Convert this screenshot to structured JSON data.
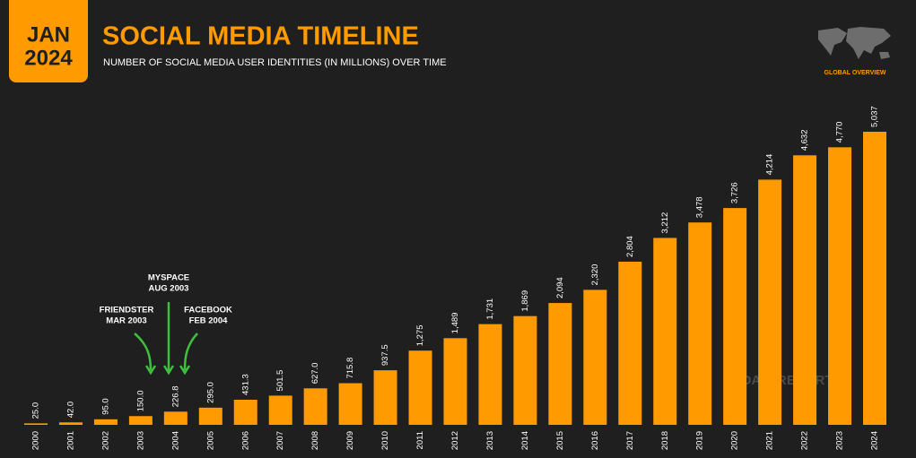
{
  "chart_data": {
    "type": "bar",
    "badge": [
      "JAN",
      "2024"
    ],
    "title": "SOCIAL MEDIA TIMELINE",
    "subtitle": "NUMBER OF SOCIAL MEDIA USER IDENTITIES (IN MILLIONS) OVER TIME",
    "section": "GLOBAL OVERVIEW",
    "watermark": "DATAREPORTAL",
    "categories": [
      "2000",
      "2001",
      "2002",
      "2003",
      "2004",
      "2005",
      "2006",
      "2007",
      "2008",
      "2009",
      "2010",
      "2011",
      "2012",
      "2013",
      "2014",
      "2015",
      "2016",
      "2017",
      "2018",
      "2019",
      "2020",
      "2021",
      "2022",
      "2023",
      "2024"
    ],
    "values": [
      25.0,
      42.0,
      95.0,
      150.0,
      226.8,
      295.0,
      431.3,
      501.5,
      627.0,
      715.8,
      937.5,
      1275,
      1489,
      1731,
      1869,
      2094,
      2320,
      2804,
      3212,
      3478,
      3726,
      4214,
      4632,
      4770,
      5037
    ],
    "value_labels": [
      "25.0",
      "42.0",
      "95.0",
      "150.0",
      "226.8",
      "295.0",
      "431.3",
      "501.5",
      "627.0",
      "715.8",
      "937.5",
      "1,275",
      "1,489",
      "1,731",
      "1,869",
      "2,094",
      "2,320",
      "2,804",
      "3,212",
      "3,478",
      "3,726",
      "4,214",
      "4,632",
      "4,770",
      "5,037"
    ],
    "color": "#ff9a00",
    "annotations": [
      {
        "lines": [
          "FRIENDSTER",
          "MAR 2003"
        ]
      },
      {
        "lines": [
          "MYSPACE",
          "AUG 2003"
        ]
      },
      {
        "lines": [
          "FACEBOOK",
          "FEB 2004"
        ]
      }
    ]
  }
}
